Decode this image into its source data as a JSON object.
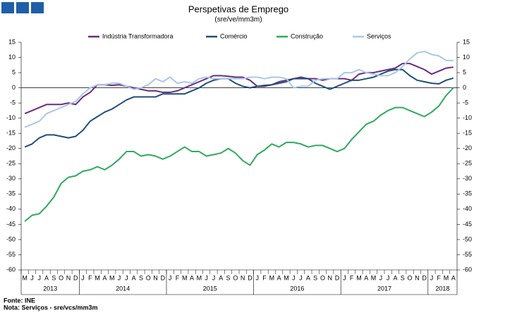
{
  "chart_data": {
    "type": "line",
    "title": "Perspetivas de Emprego",
    "subtitle": "(sre/ve/mm3m)",
    "categories": [
      "M",
      "J",
      "J",
      "A",
      "S",
      "O",
      "N",
      "D",
      "J",
      "F",
      "M",
      "A",
      "M",
      "J",
      "J",
      "A",
      "S",
      "O",
      "N",
      "D",
      "J",
      "F",
      "M",
      "A",
      "M",
      "J",
      "J",
      "A",
      "S",
      "O",
      "N",
      "D",
      "J",
      "F",
      "M",
      "A",
      "M",
      "J",
      "J",
      "A",
      "S",
      "O",
      "N",
      "D",
      "J",
      "F",
      "M",
      "A",
      "M",
      "J",
      "J",
      "A",
      "S",
      "O",
      "N",
      "D",
      "J",
      "F",
      "M",
      "A"
    ],
    "years": [
      "2013",
      "2014",
      "2015",
      "2016",
      "2017",
      "2018"
    ],
    "series": [
      {
        "name": "Indústria Transformadora",
        "color": "#6b2c80",
        "values": [
          -8.5,
          -7.5,
          -6.5,
          -5.5,
          -5.5,
          -5.5,
          -5,
          -5.5,
          -3,
          -1.5,
          1,
          1,
          0.8,
          1,
          0.5,
          0,
          -0.5,
          -1,
          -1,
          -1.5,
          -1.5,
          -1,
          0,
          1,
          2,
          3,
          4,
          4,
          3.8,
          3.5,
          3.5,
          2.5,
          0.5,
          0.5,
          1,
          2,
          2.5,
          3,
          3.5,
          3,
          3,
          2.5,
          3,
          3,
          3,
          2.5,
          4.5,
          5,
          5,
          5.5,
          6,
          6.5,
          8,
          8,
          7,
          6,
          4.5,
          5.5,
          6.5,
          6.8
        ]
      },
      {
        "name": "Comércio",
        "color": "#1f4e79",
        "values": [
          -19.5,
          -18.5,
          -16.5,
          -15.5,
          -15.5,
          -16,
          -16.5,
          -16,
          -14,
          -11,
          -9.5,
          -8,
          -7,
          -5.5,
          -4,
          -3,
          -3,
          -3,
          -3,
          -2,
          -2,
          -2,
          -2,
          -1,
          0,
          1.5,
          2.5,
          3,
          3,
          1.5,
          0.5,
          0,
          0.5,
          0.8,
          1,
          1.5,
          2,
          3,
          3,
          3,
          1.5,
          0.5,
          -0.5,
          0.5,
          1.5,
          2.5,
          2.5,
          3,
          3.5,
          4.5,
          5.5,
          6,
          6,
          4,
          2.5,
          2,
          1.5,
          1.3,
          2.5,
          3.2
        ]
      },
      {
        "name": "Construção",
        "color": "#2eaa5e",
        "values": [
          -44,
          -42,
          -41.5,
          -39,
          -36,
          -31.5,
          -29.5,
          -29,
          -27.5,
          -27,
          -26,
          -27,
          -25.5,
          -23.5,
          -21,
          -21,
          -22.5,
          -22,
          -22.5,
          -23.5,
          -22.5,
          -21,
          -19.5,
          -21,
          -21,
          -22.5,
          -22,
          -21.5,
          -20,
          -21.5,
          -24,
          -25.5,
          -22,
          -20.5,
          -18.5,
          -19.5,
          -18,
          -18,
          -18.5,
          -19.5,
          -19,
          -19,
          -20,
          -21,
          -20,
          -17,
          -14.5,
          -12,
          -11,
          -9,
          -7.5,
          -6.5,
          -6.5,
          -7.5,
          -8.5,
          -9.5,
          -8,
          -6,
          -2.5,
          0
        ]
      },
      {
        "name": "Serviços",
        "color": "#a9c8e6",
        "values": [
          -13,
          -12,
          -11,
          -8.5,
          -7.5,
          -6.5,
          -5.5,
          -4.5,
          -2,
          0,
          1,
          1,
          1.5,
          1.5,
          0.5,
          -0.5,
          0,
          1,
          3,
          2,
          3.5,
          1.5,
          2,
          1.5,
          3,
          3.5,
          3,
          3,
          3,
          3,
          3,
          3.5,
          3.5,
          3,
          3.5,
          3.5,
          3,
          0,
          0.5,
          0.5,
          2.5,
          3,
          3,
          3,
          5,
          5,
          6,
          5,
          4.5,
          4,
          4,
          5,
          7,
          9.5,
          11.5,
          12,
          11,
          10.5,
          9,
          9
        ]
      }
    ],
    "ylim": [
      -60,
      15
    ],
    "yticks": [
      15,
      10,
      5,
      0,
      -5,
      -10,
      -15,
      -20,
      -25,
      -30,
      -35,
      -40,
      -45,
      -50,
      -55,
      -60
    ],
    "y2lim": [
      -60,
      15
    ],
    "y2ticks": [
      15,
      10,
      5,
      0,
      -5,
      -10,
      -15,
      -20,
      -25,
      -30,
      -35,
      -40,
      -45,
      -50,
      -55,
      -60
    ],
    "notes": [
      "Fonte: INE",
      "Nota: Serviços - sre/vcs/mm3m"
    ]
  }
}
